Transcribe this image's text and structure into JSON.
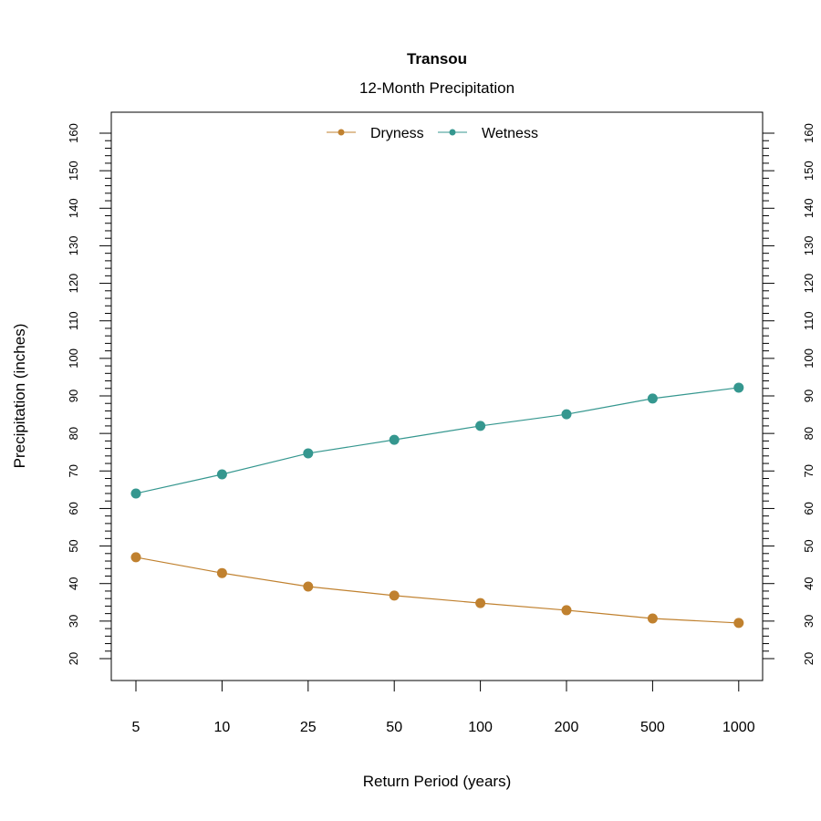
{
  "chart_data": {
    "type": "line",
    "title": "Transou",
    "subtitle": "12-Month Precipitation",
    "xlabel": "Return Period (years)",
    "ylabel": "Precipitation (inches)",
    "categories": [
      "5",
      "10",
      "25",
      "50",
      "100",
      "200",
      "500",
      "1000"
    ],
    "ylim": [
      20,
      160
    ],
    "yticks": [
      20,
      30,
      40,
      50,
      60,
      70,
      80,
      90,
      100,
      110,
      120,
      130,
      140,
      150,
      160
    ],
    "y_minor_step": 2,
    "y_axis_sides": [
      "left",
      "right"
    ],
    "grid": false,
    "legend": "top-center",
    "series": [
      {
        "name": "Dryness",
        "color": "#C0812F",
        "values": [
          47.0,
          42.8,
          39.2,
          36.8,
          34.8,
          32.9,
          30.7,
          29.5
        ]
      },
      {
        "name": "Wetness",
        "color": "#35978F",
        "values": [
          64.0,
          69.1,
          74.7,
          78.3,
          82.0,
          85.1,
          89.3,
          92.2
        ]
      }
    ]
  }
}
